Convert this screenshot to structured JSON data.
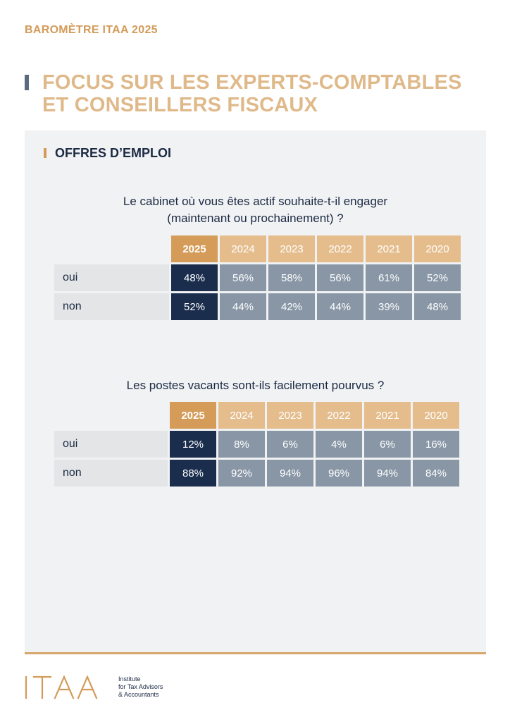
{
  "header": {
    "label": "BAROMÈTRE ITAA 2025"
  },
  "title": {
    "line1": "FOCUS SUR LES EXPERTS-COMPTABLES",
    "line2": "ET CONSEILLERS FISCAUX"
  },
  "section": {
    "title": "OFFRES D’EMPLOI"
  },
  "colors": {
    "accent": "#d39b59",
    "title": "#dfb98a",
    "dark": "#1a2d4d",
    "grey_cell": "#8896a6"
  },
  "table1": {
    "question_line1": "Le cabinet où vous êtes actif souhaite-t-il engager",
    "question_line2": "(maintenant ou prochainement) ?",
    "years": [
      "2025",
      "2024",
      "2023",
      "2022",
      "2021",
      "2020"
    ],
    "rows": [
      {
        "label": "oui",
        "values": [
          "48%",
          "56%",
          "58%",
          "56%",
          "61%",
          "52%"
        ]
      },
      {
        "label": "non",
        "values": [
          "52%",
          "44%",
          "42%",
          "44%",
          "39%",
          "48%"
        ]
      }
    ]
  },
  "table2": {
    "question": "Les postes vacants sont-ils facilement pourvus ?",
    "years": [
      "2025",
      "2024",
      "2023",
      "2022",
      "2021",
      "2020"
    ],
    "rows": [
      {
        "label": "oui",
        "values": [
          "12%",
          "8%",
          "6%",
          "4%",
          "6%",
          "16%"
        ]
      },
      {
        "label": "non",
        "values": [
          "88%",
          "92%",
          "94%",
          "96%",
          "94%",
          "84%"
        ]
      }
    ]
  },
  "logo": {
    "wordmark": "ITAA",
    "tagline_line1": "Institute",
    "tagline_line2": "for Tax Advisors",
    "tagline_line3": "& Accountants"
  }
}
